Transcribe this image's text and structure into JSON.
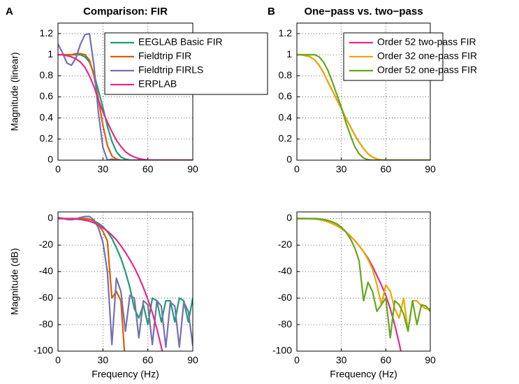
{
  "chart_data": {
    "charts": [
      {
        "type": "line",
        "panel_label": "A",
        "title": "Comparison: FIR",
        "y_label": "Magnitude (linear)",
        "x": [
          0,
          3,
          6,
          9,
          12,
          15,
          18,
          21,
          24,
          27,
          30,
          33,
          36,
          39,
          42,
          45,
          48,
          51,
          54,
          57,
          60,
          63,
          66,
          69,
          72,
          75,
          78,
          81,
          84,
          87,
          90
        ],
        "xlim": [
          0,
          90
        ],
        "xticks": [
          0,
          30,
          60,
          90
        ],
        "ylim": [
          0,
          1.3
        ],
        "yticks": [
          0,
          0.2,
          0.4,
          0.6,
          0.8,
          1,
          1.2
        ],
        "grid": true,
        "legend": "northeast",
        "series": [
          {
            "name": "EEGLAB Basic FIR",
            "color": "#1b9e77",
            "values": [
              1,
              1,
              1,
              1,
              1,
              1,
              0.98,
              0.93,
              0.82,
              0.66,
              0.5,
              0.32,
              0.18,
              0.08,
              0.03,
              0.01,
              0,
              0,
              0,
              0,
              0,
              0,
              0,
              0,
              0,
              0,
              0,
              0,
              0,
              0,
              0
            ]
          },
          {
            "name": "Fieldtrip FIR",
            "color": "#d95f02",
            "values": [
              1,
              1,
              1,
              1,
              1.01,
              1.01,
              1,
              0.95,
              0.8,
              0.58,
              0.33,
              0.14,
              0.04,
              0.01,
              0,
              0,
              0,
              0,
              0,
              0,
              0,
              0,
              0,
              0,
              0,
              0,
              0,
              0,
              0,
              0,
              0
            ]
          },
          {
            "name": "Fieldtrip FIRLS",
            "color": "#7570b3",
            "values": [
              1.1,
              1.02,
              0.92,
              0.9,
              0.97,
              1.1,
              1.19,
              1.2,
              0.9,
              0.45,
              0.12,
              0,
              0.01,
              0,
              0,
              0,
              0,
              0,
              0,
              0,
              0,
              0,
              0,
              0,
              0,
              0,
              0,
              0,
              0,
              0,
              0
            ]
          },
          {
            "name": "ERPLAB",
            "color": "#e7298a",
            "values": [
              1,
              1,
              0.99,
              0.98,
              0.96,
              0.93,
              0.88,
              0.8,
              0.7,
              0.57,
              0.46,
              0.36,
              0.27,
              0.19,
              0.13,
              0.08,
              0.05,
              0.03,
              0.015,
              0.007,
              0.003,
              0,
              0,
              0,
              0,
              0,
              0,
              0,
              0,
              0,
              0
            ]
          }
        ]
      },
      {
        "type": "line",
        "panel_label": "B",
        "title": "One−pass vs. two−pass",
        "x": [
          0,
          3,
          6,
          9,
          12,
          15,
          18,
          21,
          24,
          27,
          30,
          33,
          36,
          39,
          42,
          45,
          48,
          51,
          54,
          57,
          60,
          63,
          66,
          69,
          72,
          75,
          78,
          81,
          84,
          87,
          90
        ],
        "xlim": [
          0,
          90
        ],
        "xticks": [
          0,
          30,
          60,
          90
        ],
        "ylim": [
          0,
          1.3
        ],
        "yticks": [
          0,
          0.2,
          0.4,
          0.6,
          0.8,
          1,
          1.2
        ],
        "grid": true,
        "legend": "northeast",
        "series": [
          {
            "name": "Order 52 two-pass FIR",
            "color": "#e7298a",
            "values": [
              1,
              1,
              0.99,
              0.98,
              0.95,
              0.9,
              0.83,
              0.74,
              0.66,
              0.57,
              0.49,
              0.4,
              0.32,
              0.24,
              0.17,
              0.11,
              0.06,
              0.03,
              0.01,
              0.003,
              0,
              0,
              0,
              0,
              0,
              0,
              0,
              0,
              0,
              0,
              0
            ]
          },
          {
            "name": "Order 32 one-pass FIR",
            "color": "#e6ab02",
            "values": [
              1,
              1,
              0.99,
              0.98,
              0.95,
              0.9,
              0.83,
              0.74,
              0.66,
              0.57,
              0.49,
              0.4,
              0.32,
              0.24,
              0.17,
              0.11,
              0.06,
              0.03,
              0.01,
              0.003,
              0,
              0,
              0,
              0,
              0,
              0,
              0,
              0,
              0,
              0,
              0
            ]
          },
          {
            "name": "Order 52 one-pass FIR",
            "color": "#66a61e",
            "values": [
              1,
              1,
              1,
              1,
              1,
              0.98,
              0.93,
              0.85,
              0.74,
              0.62,
              0.5,
              0.36,
              0.24,
              0.13,
              0.06,
              0.02,
              0.005,
              0,
              0,
              0,
              0,
              0,
              0,
              0,
              0,
              0,
              0,
              0,
              0,
              0,
              0
            ]
          }
        ]
      },
      {
        "type": "line",
        "y_label": "Magnitude (dB)",
        "x_label": "Frequency (Hz)",
        "x": [
          0,
          3,
          6,
          9,
          12,
          15,
          18,
          21,
          24,
          27,
          30,
          33,
          36,
          39,
          42,
          45,
          48,
          51,
          54,
          57,
          60,
          63,
          66,
          69,
          72,
          75,
          78,
          81,
          84,
          87,
          90
        ],
        "xlim": [
          0,
          90
        ],
        "xticks": [
          0,
          30,
          60,
          90
        ],
        "ylim": [
          -100,
          5
        ],
        "yticks": [
          -100,
          -80,
          -60,
          -40,
          -20,
          0
        ],
        "grid": true,
        "series": [
          {
            "color": "#1b9e77",
            "values": [
              0,
              0,
              0,
              0,
              0,
              0,
              -0.2,
              -0.6,
              -1.7,
              -3.6,
              -6,
              -10,
              -15,
              -22,
              -30,
              -40,
              -52,
              -68,
              -75,
              -65,
              -80,
              -60,
              -62,
              -78,
              -62,
              -62,
              -78,
              -60,
              -62,
              -78,
              -60
            ]
          },
          {
            "color": "#d95f02",
            "values": [
              0,
              0,
              0,
              0,
              0,
              0,
              0,
              -0.4,
              -2,
              -4.7,
              -9.6,
              -17,
              -60,
              -55,
              -62,
              -110,
              null,
              null,
              null,
              null,
              null,
              null,
              null,
              null,
              null,
              null,
              null,
              null,
              null,
              null,
              null
            ]
          },
          {
            "color": "#7570b3",
            "values": [
              0.8,
              0.2,
              -0.7,
              -0.9,
              -0.3,
              0.8,
              1.5,
              1.6,
              -1,
              -7,
              -18,
              -40,
              -95,
              -45,
              -55,
              -85,
              -58,
              -60,
              -90,
              -62,
              -65,
              -95,
              -62,
              -66,
              -97,
              -63,
              -66,
              -97,
              -63,
              -70,
              -96
            ]
          },
          {
            "color": "#e7298a",
            "values": [
              0,
              0,
              -0.1,
              -0.2,
              -0.4,
              -0.7,
              -1.2,
              -2,
              -3.2,
              -5,
              -7,
              -9.5,
              -12.5,
              -16,
              -20.5,
              -25.5,
              -31,
              -37,
              -44,
              -52,
              -61,
              -71,
              -83,
              -97,
              -112,
              null,
              null,
              null,
              null,
              null,
              null
            ]
          }
        ]
      },
      {
        "type": "line",
        "x_label": "Frequency (Hz)",
        "x": [
          0,
          3,
          6,
          9,
          12,
          15,
          18,
          21,
          24,
          27,
          30,
          33,
          36,
          39,
          42,
          45,
          48,
          51,
          54,
          57,
          60,
          63,
          66,
          69,
          72,
          75,
          78,
          81,
          84,
          87,
          90
        ],
        "xlim": [
          0,
          90
        ],
        "xticks": [
          0,
          30,
          60,
          90
        ],
        "ylim": [
          -100,
          5
        ],
        "yticks": [
          -100,
          -80,
          -60,
          -40,
          -20,
          0
        ],
        "grid": true,
        "series": [
          {
            "color": "#e7298a",
            "values": [
              0,
              0,
              0,
              -0.1,
              -0.3,
              -0.7,
              -1.4,
              -2.5,
              -3.8,
              -5.5,
              -7.5,
              -10,
              -13,
              -16.5,
              -20.5,
              -25,
              -30,
              -36,
              -43,
              -50,
              -58,
              -68,
              -80,
              -94,
              -110,
              null,
              null,
              null,
              null,
              null,
              null
            ]
          },
          {
            "color": "#e6ab02",
            "values": [
              0,
              0,
              0,
              -0.1,
              -0.3,
              -0.7,
              -1.4,
              -2.5,
              -3.8,
              -5.5,
              -7.5,
              -10,
              -13,
              -16.5,
              -20.5,
              -25,
              -31,
              -38,
              -50,
              -65,
              -50,
              -55,
              -68,
              -75,
              -60,
              -85,
              -62,
              -62,
              -66,
              -68,
              -68
            ]
          },
          {
            "color": "#66a61e",
            "values": [
              0,
              0,
              0,
              0,
              0,
              -0.2,
              -0.7,
              -1.4,
              -2.5,
              -4,
              -6.5,
              -10,
              -15,
              -22,
              -32,
              -62,
              -48,
              -55,
              -70,
              -65,
              -60,
              -90,
              -62,
              -65,
              -72,
              -85,
              -62,
              -80,
              -65,
              -66,
              -70
            ]
          }
        ]
      }
    ]
  }
}
